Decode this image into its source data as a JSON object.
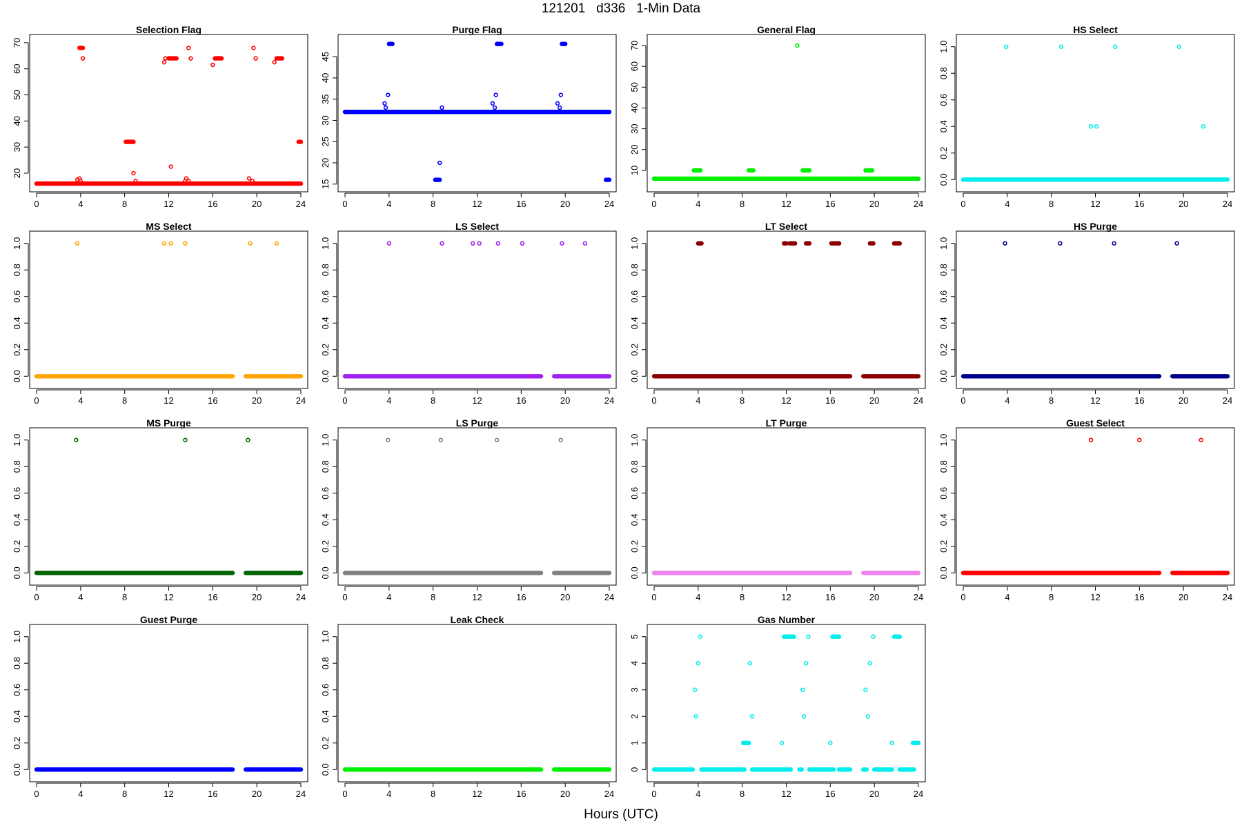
{
  "page": {
    "title": "121201   d336   1-Min Data",
    "x_axis_label": "Hours (UTC)"
  },
  "chart_data": [
    {
      "type": "scatter",
      "title": "Selection Flag",
      "color": "#ff0000",
      "xlim": [
        0,
        24
      ],
      "xticks": [
        0,
        4,
        8,
        12,
        16,
        20,
        24
      ],
      "ylim": [
        15.5,
        70.5
      ],
      "yticks": [
        20,
        30,
        40,
        50,
        60,
        70
      ],
      "ytick_labels": [
        "20",
        "30",
        "40",
        "50",
        "60",
        "70"
      ],
      "baseline": {
        "value": 16,
        "segments": [
          [
            0,
            24
          ]
        ]
      },
      "clusters": [
        {
          "x": 3.7,
          "y": 17.5
        },
        {
          "x": 3.9,
          "y": 18
        },
        {
          "x": 4.0,
          "y": 17
        },
        {
          "x": [
            3.9,
            4.2
          ],
          "y": 68
        },
        {
          "x": 4.2,
          "y": 64
        },
        {
          "x": [
            8.1,
            8.8
          ],
          "y": 32
        },
        {
          "x": 8.8,
          "y": 20
        },
        {
          "x": 9.0,
          "y": 17
        },
        {
          "x": 11.6,
          "y": 62.5
        },
        {
          "x": 11.7,
          "y": 64
        },
        {
          "x": [
            12.0,
            12.7
          ],
          "y": 64
        },
        {
          "x": 12.2,
          "y": 22.5
        },
        {
          "x": 13.5,
          "y": 17
        },
        {
          "x": 13.6,
          "y": 18
        },
        {
          "x": 13.8,
          "y": 17
        },
        {
          "x": 13.8,
          "y": 68
        },
        {
          "x": 14.0,
          "y": 64
        },
        {
          "x": 16.0,
          "y": 61.5
        },
        {
          "x": [
            16.2,
            16.8
          ],
          "y": 64
        },
        {
          "x": 19.3,
          "y": 18
        },
        {
          "x": 19.6,
          "y": 17
        },
        {
          "x": 19.7,
          "y": 68
        },
        {
          "x": 19.9,
          "y": 64
        },
        {
          "x": 21.6,
          "y": 62.5
        },
        {
          "x": [
            21.8,
            22.3
          ],
          "y": 64
        },
        {
          "x": [
            23.8,
            24.0
          ],
          "y": 32
        }
      ]
    },
    {
      "type": "scatter",
      "title": "Purge Flag",
      "color": "#0000ff",
      "xlim": [
        0,
        24
      ],
      "xticks": [
        0,
        4,
        8,
        12,
        16,
        20,
        24
      ],
      "ylim": [
        14.8,
        48.6
      ],
      "yticks": [
        15,
        20,
        25,
        30,
        35,
        40,
        45
      ],
      "ytick_labels": [
        "15",
        "20",
        "25",
        "30",
        "35",
        "40",
        "45"
      ],
      "baseline": {
        "value": 32,
        "segments": [
          [
            0,
            24
          ]
        ]
      },
      "clusters": [
        {
          "x": 3.6,
          "y": 34
        },
        {
          "x": 3.7,
          "y": 33
        },
        {
          "x": 3.9,
          "y": 36
        },
        {
          "x": [
            4.0,
            4.3
          ],
          "y": 48
        },
        {
          "x": [
            8.2,
            8.6
          ],
          "y": 16
        },
        {
          "x": 8.6,
          "y": 20
        },
        {
          "x": 8.8,
          "y": 33
        },
        {
          "x": 13.4,
          "y": 34
        },
        {
          "x": 13.6,
          "y": 33
        },
        {
          "x": 13.7,
          "y": 36
        },
        {
          "x": [
            13.8,
            14.2
          ],
          "y": 48
        },
        {
          "x": 19.3,
          "y": 34
        },
        {
          "x": 19.5,
          "y": 33
        },
        {
          "x": 19.6,
          "y": 36
        },
        {
          "x": [
            19.7,
            20.0
          ],
          "y": 48
        },
        {
          "x": [
            23.7,
            24.0
          ],
          "y": 16
        }
      ]
    },
    {
      "type": "scatter",
      "title": "General Flag",
      "color": "#00ee00",
      "xlim": [
        0,
        24
      ],
      "xticks": [
        0,
        4,
        8,
        12,
        16,
        20,
        24
      ],
      "ylim": [
        3,
        72
      ],
      "yticks": [
        10,
        20,
        30,
        40,
        50,
        60,
        70
      ],
      "ytick_labels": [
        "10",
        "20",
        "30",
        "40",
        "50",
        "60",
        "70"
      ],
      "baseline": {
        "value": 6,
        "segments": [
          [
            0,
            24
          ]
        ]
      },
      "clusters": [
        {
          "x": [
            3.6,
            4.2
          ],
          "y": 10
        },
        {
          "x": [
            8.6,
            9.0
          ],
          "y": 10
        },
        {
          "x": [
            13.5,
            14.1
          ],
          "y": 10
        },
        {
          "x": [
            19.2,
            19.8
          ],
          "y": 10
        },
        {
          "x": 13.0,
          "y": 70
        }
      ]
    },
    {
      "type": "scatter",
      "title": "HS Select",
      "color": "#00eeee",
      "xlim": [
        0,
        24
      ],
      "xticks": [
        0,
        4,
        8,
        12,
        16,
        20,
        24
      ],
      "ylim": [
        -0.04,
        1.04
      ],
      "yticks": [
        0,
        0.2,
        0.4,
        0.6,
        0.8,
        1.0
      ],
      "ytick_labels": [
        "0.0",
        "0.2",
        "0.4",
        "0.6",
        "0.8",
        "1.0"
      ],
      "baseline": {
        "value": 0,
        "segments": [
          [
            0,
            24
          ]
        ]
      },
      "clusters": [
        {
          "x": 3.9,
          "y": 1
        },
        {
          "x": 8.9,
          "y": 1
        },
        {
          "x": 13.8,
          "y": 1
        },
        {
          "x": 19.6,
          "y": 1
        },
        {
          "x": 11.6,
          "y": 0.4
        },
        {
          "x": 12.1,
          "y": 0.4
        },
        {
          "x": 21.8,
          "y": 0.4
        }
      ]
    },
    {
      "type": "scatter",
      "title": "MS Select",
      "color": "#ffa500",
      "xlim": [
        0,
        24
      ],
      "xticks": [
        0,
        4,
        8,
        12,
        16,
        20,
        24
      ],
      "ylim": [
        -0.04,
        1.04
      ],
      "yticks": [
        0,
        0.2,
        0.4,
        0.6,
        0.8,
        1.0
      ],
      "ytick_labels": [
        "0.0",
        "0.2",
        "0.4",
        "0.6",
        "0.8",
        "1.0"
      ],
      "baseline": {
        "value": 0,
        "segments": [
          [
            0,
            17.8
          ],
          [
            19.0,
            24
          ]
        ]
      },
      "clusters": [
        {
          "x": 3.7,
          "y": 1
        },
        {
          "x": 11.6,
          "y": 1
        },
        {
          "x": 12.2,
          "y": 1
        },
        {
          "x": 13.5,
          "y": 1
        },
        {
          "x": 19.4,
          "y": 1
        },
        {
          "x": 21.8,
          "y": 1
        }
      ]
    },
    {
      "type": "scatter",
      "title": "LS Select",
      "color": "#a020f0",
      "xlim": [
        0,
        24
      ],
      "xticks": [
        0,
        4,
        8,
        12,
        16,
        20,
        24
      ],
      "ylim": [
        -0.04,
        1.04
      ],
      "yticks": [
        0,
        0.2,
        0.4,
        0.6,
        0.8,
        1.0
      ],
      "ytick_labels": [
        "0.0",
        "0.2",
        "0.4",
        "0.6",
        "0.8",
        "1.0"
      ],
      "baseline": {
        "value": 0,
        "segments": [
          [
            0,
            17.8
          ],
          [
            19.0,
            24
          ]
        ]
      },
      "clusters": [
        {
          "x": 4.0,
          "y": 1
        },
        {
          "x": 8.8,
          "y": 1
        },
        {
          "x": 11.6,
          "y": 1
        },
        {
          "x": 12.2,
          "y": 1
        },
        {
          "x": 13.9,
          "y": 1
        },
        {
          "x": 16.1,
          "y": 1
        },
        {
          "x": 19.7,
          "y": 1
        },
        {
          "x": 21.8,
          "y": 1
        }
      ]
    },
    {
      "type": "scatter",
      "title": "LT Select",
      "color": "#8b0000",
      "xlim": [
        0,
        24
      ],
      "xticks": [
        0,
        4,
        8,
        12,
        16,
        20,
        24
      ],
      "ylim": [
        -0.04,
        1.04
      ],
      "yticks": [
        0,
        0.2,
        0.4,
        0.6,
        0.8,
        1.0
      ],
      "ytick_labels": [
        "0.0",
        "0.2",
        "0.4",
        "0.6",
        "0.8",
        "1.0"
      ],
      "baseline": {
        "value": 0,
        "segments": [
          [
            0,
            17.8
          ],
          [
            19.0,
            24
          ]
        ]
      },
      "clusters": [
        {
          "x": [
            4.0,
            4.3
          ],
          "y": 1
        },
        {
          "x": [
            11.8,
            12.0
          ],
          "y": 1
        },
        {
          "x": [
            12.3,
            12.8
          ],
          "y": 1
        },
        {
          "x": [
            13.8,
            14.1
          ],
          "y": 1
        },
        {
          "x": [
            16.1,
            16.8
          ],
          "y": 1
        },
        {
          "x": [
            19.6,
            19.9
          ],
          "y": 1
        },
        {
          "x": [
            21.8,
            22.3
          ],
          "y": 1
        }
      ]
    },
    {
      "type": "scatter",
      "title": "HS Purge",
      "color": "#00008b",
      "xlim": [
        0,
        24
      ],
      "xticks": [
        0,
        4,
        8,
        12,
        16,
        20,
        24
      ],
      "ylim": [
        -0.04,
        1.04
      ],
      "yticks": [
        0,
        0.2,
        0.4,
        0.6,
        0.8,
        1.0
      ],
      "ytick_labels": [
        "0.0",
        "0.2",
        "0.4",
        "0.6",
        "0.8",
        "1.0"
      ],
      "baseline": {
        "value": 0,
        "segments": [
          [
            0,
            17.8
          ],
          [
            19.0,
            24
          ]
        ]
      },
      "clusters": [
        {
          "x": 3.8,
          "y": 1
        },
        {
          "x": 8.8,
          "y": 1
        },
        {
          "x": 13.7,
          "y": 1
        },
        {
          "x": 19.4,
          "y": 1
        }
      ]
    },
    {
      "type": "scatter",
      "title": "MS Purge",
      "color": "#006400",
      "xlim": [
        0,
        24
      ],
      "xticks": [
        0,
        4,
        8,
        12,
        16,
        20,
        24
      ],
      "ylim": [
        -0.04,
        1.04
      ],
      "yticks": [
        0,
        0.2,
        0.4,
        0.6,
        0.8,
        1.0
      ],
      "ytick_labels": [
        "0.0",
        "0.2",
        "0.4",
        "0.6",
        "0.8",
        "1.0"
      ],
      "baseline": {
        "value": 0,
        "segments": [
          [
            0,
            17.8
          ],
          [
            19.0,
            24
          ]
        ]
      },
      "clusters": [
        {
          "x": 3.6,
          "y": 1
        },
        {
          "x": 13.5,
          "y": 1
        },
        {
          "x": 19.2,
          "y": 1
        }
      ]
    },
    {
      "type": "scatter",
      "title": "LS Purge",
      "color": "#808080",
      "xlim": [
        0,
        24
      ],
      "xticks": [
        0,
        4,
        8,
        12,
        16,
        20,
        24
      ],
      "ylim": [
        -0.04,
        1.04
      ],
      "yticks": [
        0,
        0.2,
        0.4,
        0.6,
        0.8,
        1.0
      ],
      "ytick_labels": [
        "0.0",
        "0.2",
        "0.4",
        "0.6",
        "0.8",
        "1.0"
      ],
      "baseline": {
        "value": 0,
        "segments": [
          [
            0,
            17.8
          ],
          [
            19.0,
            24
          ]
        ]
      },
      "clusters": [
        {
          "x": 3.9,
          "y": 1
        },
        {
          "x": 8.7,
          "y": 1
        },
        {
          "x": 13.8,
          "y": 1
        },
        {
          "x": 19.6,
          "y": 1
        }
      ]
    },
    {
      "type": "scatter",
      "title": "LT Purge",
      "color": "#ee82ee",
      "xlim": [
        0,
        24
      ],
      "xticks": [
        0,
        4,
        8,
        12,
        16,
        20,
        24
      ],
      "ylim": [
        -0.04,
        1.04
      ],
      "yticks": [
        0,
        0.2,
        0.4,
        0.6,
        0.8,
        1.0
      ],
      "ytick_labels": [
        "0.0",
        "0.2",
        "0.4",
        "0.6",
        "0.8",
        "1.0"
      ],
      "baseline": {
        "value": 0,
        "segments": [
          [
            0,
            17.8
          ],
          [
            19.0,
            24
          ]
        ]
      },
      "clusters": []
    },
    {
      "type": "scatter",
      "title": "Guest Select",
      "color": "#ff0000",
      "xlim": [
        0,
        24
      ],
      "xticks": [
        0,
        4,
        8,
        12,
        16,
        20,
        24
      ],
      "ylim": [
        -0.04,
        1.04
      ],
      "yticks": [
        0,
        0.2,
        0.4,
        0.6,
        0.8,
        1.0
      ],
      "ytick_labels": [
        "0.0",
        "0.2",
        "0.4",
        "0.6",
        "0.8",
        "1.0"
      ],
      "baseline": {
        "value": 0,
        "segments": [
          [
            0,
            17.8
          ],
          [
            19.0,
            24
          ]
        ]
      },
      "clusters": [
        {
          "x": 11.6,
          "y": 1
        },
        {
          "x": 16.0,
          "y": 1
        },
        {
          "x": 21.6,
          "y": 1
        }
      ]
    },
    {
      "type": "scatter",
      "title": "Guest Purge",
      "color": "#0000ff",
      "xlim": [
        0,
        24
      ],
      "xticks": [
        0,
        4,
        8,
        12,
        16,
        20,
        24
      ],
      "ylim": [
        -0.04,
        1.04
      ],
      "yticks": [
        0,
        0.2,
        0.4,
        0.6,
        0.8,
        1.0
      ],
      "ytick_labels": [
        "0.0",
        "0.2",
        "0.4",
        "0.6",
        "0.8",
        "1.0"
      ],
      "baseline": {
        "value": 0,
        "segments": [
          [
            0,
            17.8
          ],
          [
            19.0,
            24
          ]
        ]
      },
      "clusters": []
    },
    {
      "type": "scatter",
      "title": "Leak Check",
      "color": "#00ee00",
      "xlim": [
        0,
        24
      ],
      "xticks": [
        0,
        4,
        8,
        12,
        16,
        20,
        24
      ],
      "ylim": [
        -0.04,
        1.04
      ],
      "yticks": [
        0,
        0.2,
        0.4,
        0.6,
        0.8,
        1.0
      ],
      "ytick_labels": [
        "0.0",
        "0.2",
        "0.4",
        "0.6",
        "0.8",
        "1.0"
      ],
      "baseline": {
        "value": 0,
        "segments": [
          [
            0,
            17.8
          ],
          [
            19.0,
            24
          ]
        ]
      },
      "clusters": []
    },
    {
      "type": "scatter",
      "title": "Gas Number",
      "color": "#00eeee",
      "xlim": [
        0,
        24
      ],
      "xticks": [
        0,
        4,
        8,
        12,
        16,
        20,
        24
      ],
      "ylim": [
        -0.2,
        5.2
      ],
      "yticks": [
        0,
        1,
        2,
        3,
        4,
        5
      ],
      "ytick_labels": [
        "0",
        "1",
        "2",
        "3",
        "4",
        "5"
      ],
      "baseline": {
        "value": 0,
        "segments": [
          [
            0,
            3.5
          ],
          [
            4.3,
            8.2
          ],
          [
            8.9,
            12.4
          ],
          [
            13.2,
            13.4
          ],
          [
            14.1,
            16.3
          ],
          [
            16.8,
            17.8
          ],
          [
            19.0,
            19.3
          ],
          [
            20.0,
            21.6
          ],
          [
            22.3,
            23.6
          ]
        ]
      },
      "clusters": [
        {
          "x": 3.7,
          "y": 3
        },
        {
          "x": 3.8,
          "y": 2
        },
        {
          "x": 4.0,
          "y": 4
        },
        {
          "x": 4.2,
          "y": 5
        },
        {
          "x": [
            8.1,
            8.6
          ],
          "y": 1
        },
        {
          "x": 8.7,
          "y": 4
        },
        {
          "x": 8.9,
          "y": 2
        },
        {
          "x": 11.6,
          "y": 1
        },
        {
          "x": [
            11.8,
            12.7
          ],
          "y": 5
        },
        {
          "x": 13.5,
          "y": 3
        },
        {
          "x": 13.6,
          "y": 2
        },
        {
          "x": 13.8,
          "y": 4
        },
        {
          "x": 14.0,
          "y": 5
        },
        {
          "x": 16.0,
          "y": 1
        },
        {
          "x": [
            16.2,
            16.8
          ],
          "y": 5
        },
        {
          "x": 19.2,
          "y": 3
        },
        {
          "x": 19.4,
          "y": 2
        },
        {
          "x": 19.6,
          "y": 4
        },
        {
          "x": 19.9,
          "y": 5
        },
        {
          "x": 21.6,
          "y": 1
        },
        {
          "x": [
            21.8,
            22.3
          ],
          "y": 5
        },
        {
          "x": [
            23.5,
            24.0
          ],
          "y": 1
        }
      ]
    }
  ]
}
